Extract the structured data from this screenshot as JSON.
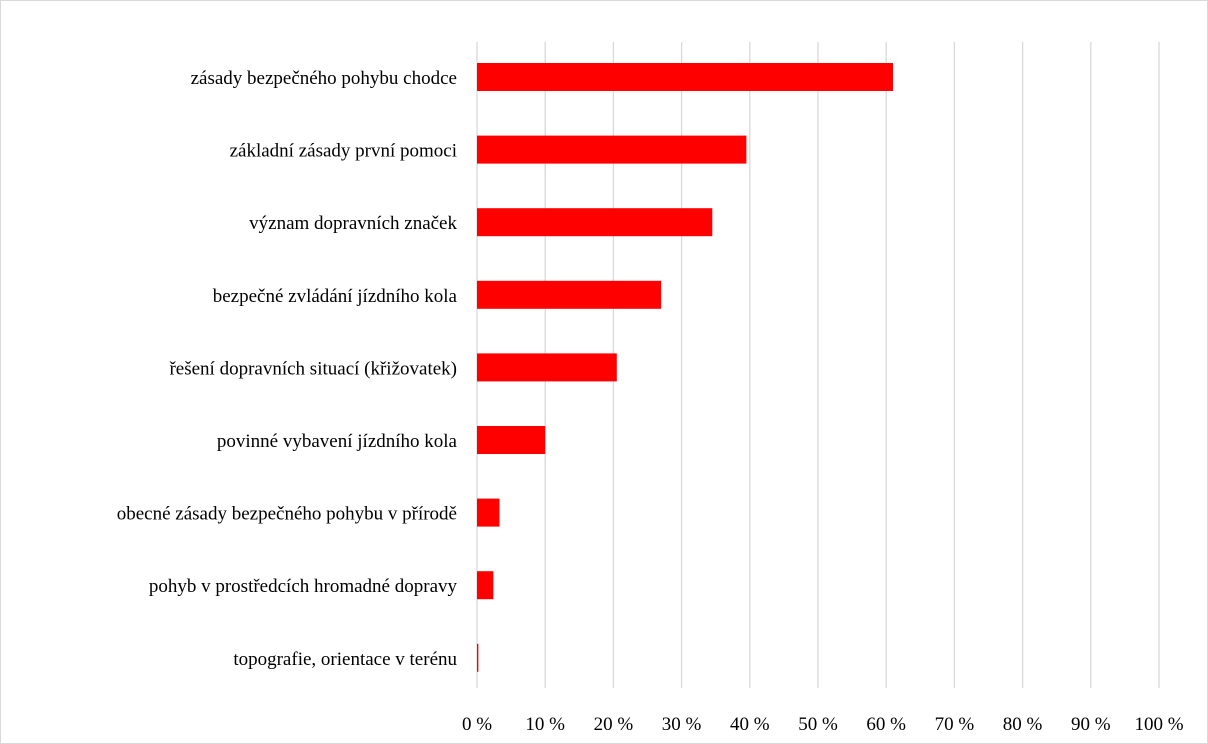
{
  "chart_data": {
    "type": "bar",
    "orientation": "horizontal",
    "title": "",
    "xlabel": "",
    "ylabel": "",
    "xlim": [
      0,
      100
    ],
    "grid": true,
    "legend": "none",
    "bar_color": "#ff0000",
    "grid_color": "#d9d9d9",
    "categories": [
      "zásady bezpečného pohybu chodce",
      "základní zásady první pomoci",
      "význam dopravních značek",
      "bezpečné zvládání jízdního kola",
      "řešení dopravních situací (křižovatek)",
      "povinné vybavení jízdního kola",
      "obecné zásady bezpečného pohybu v přírodě",
      "pohyb v prostředcích hromadné dopravy",
      "topografie, orientace v terénu"
    ],
    "values": [
      61,
      39.5,
      34.5,
      27,
      20.5,
      10,
      3.3,
      2.4,
      0.2
    ],
    "tick_labels": [
      "0 %",
      "10 %",
      "20 %",
      "30 %",
      "40 %",
      "50 %",
      "60 %",
      "70 %",
      "80 %",
      "90 %",
      "100 %"
    ]
  }
}
